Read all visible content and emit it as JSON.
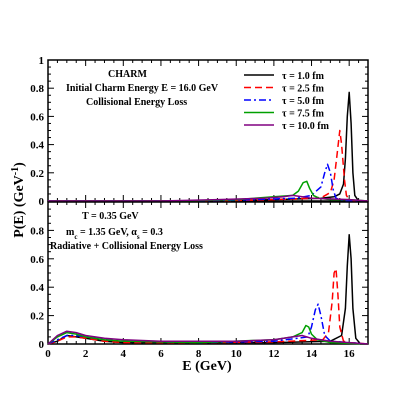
{
  "chart_data": {
    "type": "line",
    "xlabel": "E (GeV)",
    "ylabel": "P(E) (GeV⁻¹)",
    "xlim": [
      0,
      17
    ],
    "x_ticks": [
      0,
      2,
      4,
      6,
      8,
      10,
      12,
      14,
      16
    ],
    "legend": {
      "placement": "top-right",
      "entries": [
        {
          "label": "τ = 1.0 fm",
          "color": "#000000",
          "dash": "solid"
        },
        {
          "label": "τ = 2.5 fm",
          "color": "#ff0000",
          "dash": "dashed"
        },
        {
          "label": "τ = 5.0 fm",
          "color": "#0000ff",
          "dash": "dashdot"
        },
        {
          "label": "τ = 7.5 fm",
          "color": "#00a000",
          "dash": "solid"
        },
        {
          "label": "τ = 10.0 fm",
          "color": "#800080",
          "dash": "solid"
        }
      ]
    },
    "panels": [
      {
        "id": "top",
        "annotations": [
          "CHARM",
          "Initial Charm Energy E = 16.0 GeV",
          "Collisional Energy Loss"
        ],
        "ylim": [
          0,
          1
        ],
        "y_ticks": [
          0,
          0.2,
          0.4,
          0.6,
          0.8,
          1
        ],
        "y_tick_labels": [
          "0",
          "0.2",
          "0.4",
          "0.6",
          "0.8",
          "1"
        ],
        "series": [
          {
            "x": [
              0,
              9,
              12,
              14.5,
              15.2,
              15.5,
              15.7,
              15.8,
              15.9,
              16.0,
              16.1,
              16.2,
              16.3,
              16.5,
              17
            ],
            "y": [
              0,
              0,
              0.01,
              0.02,
              0.03,
              0.05,
              0.12,
              0.3,
              0.6,
              0.77,
              0.55,
              0.2,
              0.04,
              0,
              0
            ]
          },
          {
            "x": [
              0,
              9,
              12,
              14.2,
              14.6,
              15.0,
              15.2,
              15.35,
              15.5,
              15.6,
              15.75,
              15.85,
              16.0,
              16.3,
              17
            ],
            "y": [
              0,
              0,
              0.01,
              0.02,
              0.03,
              0.06,
              0.15,
              0.32,
              0.5,
              0.4,
              0.15,
              0.04,
              0.01,
              0,
              0
            ]
          },
          {
            "x": [
              0,
              8,
              11,
              13.2,
              14.0,
              14.5,
              14.7,
              14.85,
              15.0,
              15.15,
              15.3,
              15.5,
              15.8,
              17
            ],
            "y": [
              0,
              0,
              0.01,
              0.02,
              0.04,
              0.1,
              0.2,
              0.26,
              0.2,
              0.08,
              0.02,
              0.01,
              0,
              0
            ]
          },
          {
            "x": [
              0,
              7,
              10,
              12.0,
              13.0,
              13.3,
              13.55,
              13.75,
              13.9,
              14.1,
              14.4,
              15.0,
              16.0,
              17
            ],
            "y": [
              0,
              0,
              0.01,
              0.03,
              0.04,
              0.07,
              0.13,
              0.14,
              0.09,
              0.04,
              0.02,
              0.01,
              0.01,
              0
            ]
          },
          {
            "x": [
              0,
              6,
              9,
              11.5,
              12.5,
              13.0,
              13.5,
              14.0,
              15.0,
              16.0,
              17
            ],
            "y": [
              0,
              0,
              0.01,
              0.02,
              0.03,
              0.04,
              0.03,
              0.02,
              0.015,
              0.01,
              0
            ]
          }
        ]
      },
      {
        "id": "bottom",
        "annotations": [
          "T = 0.35 GeV",
          "m_c = 1.35 GeV, α_s = 0.3",
          "Radiative + Collisional Energy Loss"
        ],
        "ylim": [
          0,
          1
        ],
        "y_ticks": [
          0,
          0.2,
          0.4,
          0.6,
          0.8
        ],
        "y_tick_labels": [
          "0",
          "0.2",
          "0.4",
          "0.6",
          "0.8"
        ],
        "series": [
          {
            "x": [
              0,
              0.5,
              1.0,
              1.5,
              2.0,
              3.0,
              4.0,
              8.0,
              12.0,
              15.0,
              15.6,
              15.8,
              15.9,
              16.0,
              16.1,
              16.2,
              16.35,
              16.6,
              17
            ],
            "y": [
              0,
              0.02,
              0.06,
              0.05,
              0.04,
              0.02,
              0.01,
              0.01,
              0.01,
              0.02,
              0.06,
              0.25,
              0.55,
              0.77,
              0.6,
              0.25,
              0.04,
              0,
              0
            ]
          },
          {
            "x": [
              0,
              0.5,
              1.0,
              1.5,
              2.0,
              3.0,
              4.0,
              8.0,
              12.0,
              14.6,
              14.9,
              15.1,
              15.2,
              15.3,
              15.4,
              15.5,
              15.7,
              16.0,
              17
            ],
            "y": [
              0,
              0.02,
              0.05,
              0.05,
              0.04,
              0.02,
              0.01,
              0.01,
              0.015,
              0.03,
              0.08,
              0.3,
              0.5,
              0.53,
              0.35,
              0.12,
              0.02,
              0.01,
              0
            ]
          },
          {
            "x": [
              0,
              0.5,
              1.0,
              1.5,
              2.0,
              3.0,
              4.0,
              8.0,
              12.0,
              13.8,
              14.0,
              14.2,
              14.35,
              14.5,
              14.7,
              15.0,
              16.0,
              17
            ],
            "y": [
              0,
              0.03,
              0.06,
              0.06,
              0.05,
              0.03,
              0.02,
              0.01,
              0.02,
              0.05,
              0.12,
              0.24,
              0.28,
              0.2,
              0.06,
              0.02,
              0.01,
              0
            ]
          },
          {
            "x": [
              0,
              0.5,
              1.0,
              1.5,
              2.0,
              3.0,
              4.0,
              8.0,
              12.0,
              13.0,
              13.5,
              13.7,
              13.85,
              14.0,
              14.3,
              15.0,
              17
            ],
            "y": [
              0,
              0.05,
              0.08,
              0.07,
              0.05,
              0.03,
              0.02,
              0.01,
              0.03,
              0.05,
              0.08,
              0.13,
              0.12,
              0.07,
              0.03,
              0.01,
              0
            ]
          },
          {
            "x": [
              0,
              0.5,
              1.0,
              1.5,
              2.0,
              3.0,
              4.0,
              6.0,
              10.0,
              12.0,
              13.0,
              13.5,
              14.0,
              15.0,
              17
            ],
            "y": [
              0,
              0.06,
              0.09,
              0.08,
              0.06,
              0.04,
              0.03,
              0.02,
              0.02,
              0.03,
              0.05,
              0.06,
              0.04,
              0.02,
              0
            ]
          }
        ]
      }
    ]
  }
}
